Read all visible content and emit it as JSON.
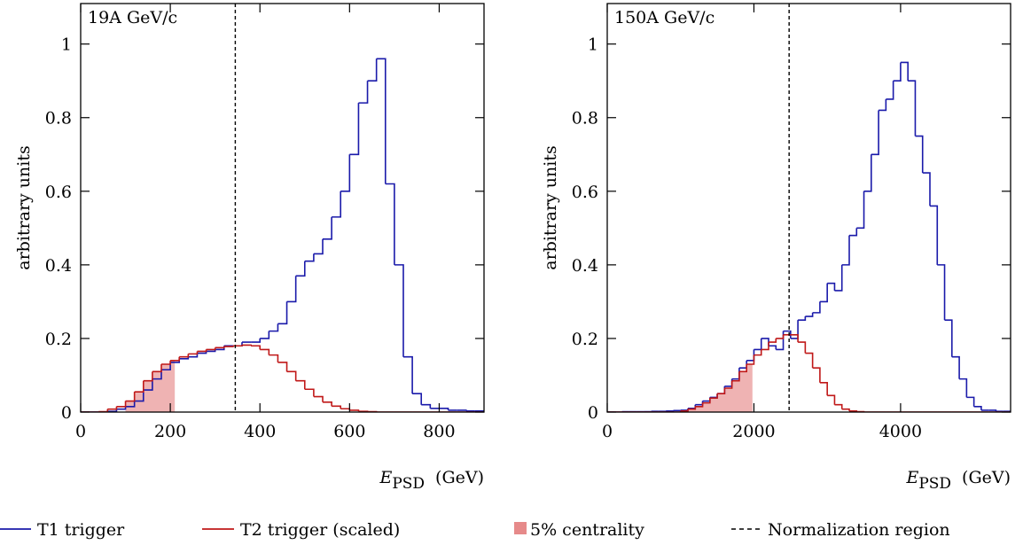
{
  "chart_data": [
    {
      "type": "histogram",
      "annotation": "19A GeV/c",
      "ylabel": "arbitrary units",
      "xlabel": {
        "symbol": "E",
        "subscript": "PSD",
        "unit": "(GeV)"
      },
      "bins": [
        0,
        20,
        40,
        60,
        80,
        100,
        120,
        140,
        160,
        180,
        200,
        220,
        240,
        260,
        280,
        300,
        320,
        340,
        360,
        380,
        400,
        420,
        440,
        460,
        480,
        500,
        520,
        540,
        560,
        580,
        600,
        620,
        640,
        660,
        680,
        700,
        720,
        740,
        760,
        780,
        800,
        820,
        840,
        860,
        880,
        900
      ],
      "series": [
        {
          "name": "T1 trigger",
          "color": "#1a1aaa",
          "values": [
            0,
            0,
            0,
            0.002,
            0.008,
            0.015,
            0.03,
            0.06,
            0.09,
            0.115,
            0.135,
            0.145,
            0.15,
            0.16,
            0.165,
            0.17,
            0.18,
            0.18,
            0.19,
            0.19,
            0.2,
            0.22,
            0.24,
            0.3,
            0.37,
            0.41,
            0.43,
            0.47,
            0.53,
            0.6,
            0.7,
            0.84,
            0.9,
            0.96,
            0.62,
            0.4,
            0.15,
            0.05,
            0.02,
            0.01,
            0.01,
            0.005,
            0.005,
            0.003,
            0.003
          ]
        },
        {
          "name": "T2 trigger (scaled)",
          "color": "#c01818",
          "values": [
            0,
            0,
            0.001,
            0.008,
            0.015,
            0.03,
            0.055,
            0.085,
            0.11,
            0.13,
            0.14,
            0.15,
            0.158,
            0.165,
            0.17,
            0.175,
            0.178,
            0.18,
            0.182,
            0.18,
            0.17,
            0.155,
            0.135,
            0.11,
            0.085,
            0.062,
            0.042,
            0.027,
            0.016,
            0.009,
            0.005,
            0.002,
            0.001,
            0,
            0,
            0,
            0,
            0,
            0,
            0,
            0,
            0,
            0,
            0,
            0
          ]
        }
      ],
      "shaded": {
        "name": "5% centrality",
        "color": "#e68a8a",
        "range": [
          100,
          210
        ]
      },
      "reference_line": {
        "name": "Normalization region",
        "x": 345
      },
      "xlim": [
        0,
        900
      ],
      "ylim": [
        0,
        1.11
      ],
      "xticks": [
        0,
        200,
        400,
        600,
        800
      ],
      "yticks": [
        0,
        0.2,
        0.4,
        0.6,
        0.8,
        1
      ]
    },
    {
      "type": "histogram",
      "annotation": "150A GeV/c",
      "ylabel": "arbitrary units",
      "xlabel": {
        "symbol": "E",
        "subscript": "PSD",
        "unit": "(GeV)"
      },
      "bins": [
        0,
        100,
        200,
        300,
        400,
        500,
        600,
        700,
        800,
        900,
        1000,
        1100,
        1200,
        1300,
        1400,
        1500,
        1600,
        1700,
        1800,
        1900,
        2000,
        2100,
        2200,
        2300,
        2400,
        2500,
        2600,
        2700,
        2800,
        2900,
        3000,
        3100,
        3200,
        3300,
        3400,
        3500,
        3600,
        3700,
        3800,
        3900,
        4000,
        4100,
        4200,
        4300,
        4400,
        4500,
        4600,
        4700,
        4800,
        4900,
        5000,
        5100,
        5200,
        5300,
        5400,
        5500
      ],
      "series": [
        {
          "color": "#1a1aaa",
          "values": [
            0,
            0,
            0.001,
            0.001,
            0.001,
            0.001,
            0.002,
            0.002,
            0.003,
            0.004,
            0.005,
            0.01,
            0.02,
            0.03,
            0.04,
            0.05,
            0.07,
            0.09,
            0.12,
            0.14,
            0.17,
            0.2,
            0.18,
            0.17,
            0.22,
            0.2,
            0.25,
            0.26,
            0.27,
            0.3,
            0.35,
            0.33,
            0.4,
            0.48,
            0.5,
            0.6,
            0.7,
            0.82,
            0.85,
            0.9,
            0.95,
            0.9,
            0.75,
            0.65,
            0.56,
            0.4,
            0.25,
            0.15,
            0.09,
            0.04,
            0.015,
            0.005,
            0.005,
            0.002,
            0.002
          ]
        },
        {
          "color": "#c01818",
          "values": [
            0,
            0,
            0,
            0,
            0,
            0,
            0,
            0,
            0,
            0,
            0.003,
            0.008,
            0.015,
            0.025,
            0.038,
            0.05,
            0.065,
            0.085,
            0.11,
            0.13,
            0.155,
            0.17,
            0.19,
            0.2,
            0.21,
            0.21,
            0.19,
            0.16,
            0.12,
            0.08,
            0.045,
            0.02,
            0.008,
            0.003,
            0.001,
            0,
            0,
            0,
            0,
            0,
            0,
            0,
            0,
            0,
            0,
            0,
            0,
            0,
            0,
            0,
            0,
            0,
            0,
            0,
            0
          ]
        }
      ],
      "shaded": {
        "color": "#e68a8a",
        "range": [
          1000,
          1980
        ]
      },
      "reference_line": {
        "x": 2480
      },
      "xlim": [
        0,
        5500
      ],
      "ylim": [
        0,
        1.11
      ],
      "xticks": [
        0,
        2000,
        4000
      ],
      "yticks": [
        0,
        0.2,
        0.4,
        0.6,
        0.8,
        1
      ]
    }
  ]
}
